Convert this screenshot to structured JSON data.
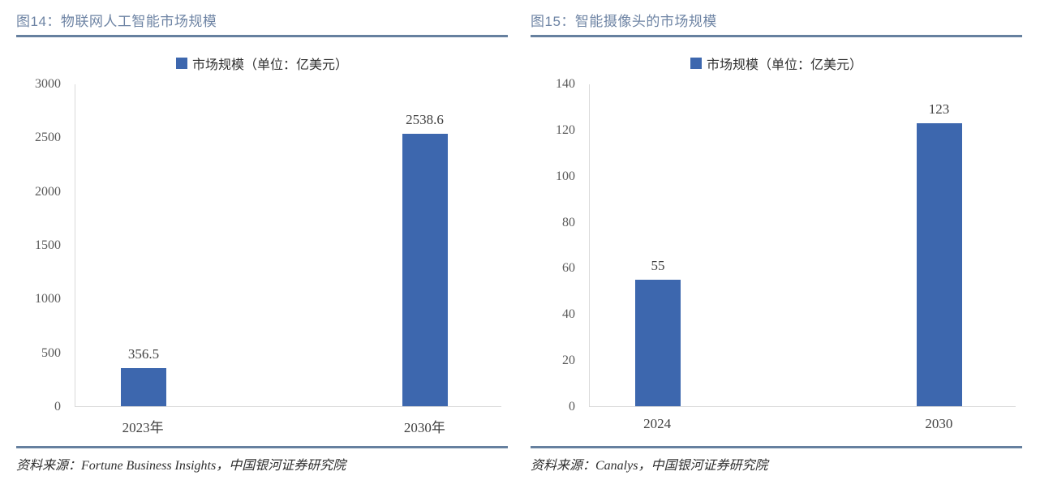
{
  "colors": {
    "bar": "#3D67AE",
    "legend_swatch": "#3265BC",
    "title_text": "#6E84A4",
    "rule": "#66809F",
    "axis_line": "#D9D9D9",
    "tick_text": "#595959"
  },
  "chart_data": [
    {
      "type": "bar",
      "title": "图14：物联网人工智能市场规模",
      "legend": "市场规模（单位：亿美元）",
      "categories": [
        "2023年",
        "2030年"
      ],
      "values": [
        356.5,
        2538.6
      ],
      "value_labels": [
        "356.5",
        "2538.6"
      ],
      "ylim": [
        0,
        3000
      ],
      "yticks": [
        0,
        500,
        1000,
        1500,
        2000,
        2500,
        3000
      ],
      "grid": false,
      "legend_position": "top-center",
      "bar_color": "#3D67AE",
      "source": "资料来源：Fortune Business Insights，中国银河证券研究院"
    },
    {
      "type": "bar",
      "title": "图15：智能摄像头的市场规模",
      "legend": "市场规模（单位：亿美元）",
      "categories": [
        "2024",
        "2030"
      ],
      "values": [
        55,
        123
      ],
      "value_labels": [
        "55",
        "123"
      ],
      "ylim": [
        0,
        140
      ],
      "yticks": [
        0,
        20,
        40,
        60,
        80,
        100,
        120,
        140
      ],
      "grid": false,
      "legend_position": "top-center",
      "bar_color": "#3D67AE",
      "source": "资料来源：Canalys，中国银河证券研究院"
    }
  ]
}
